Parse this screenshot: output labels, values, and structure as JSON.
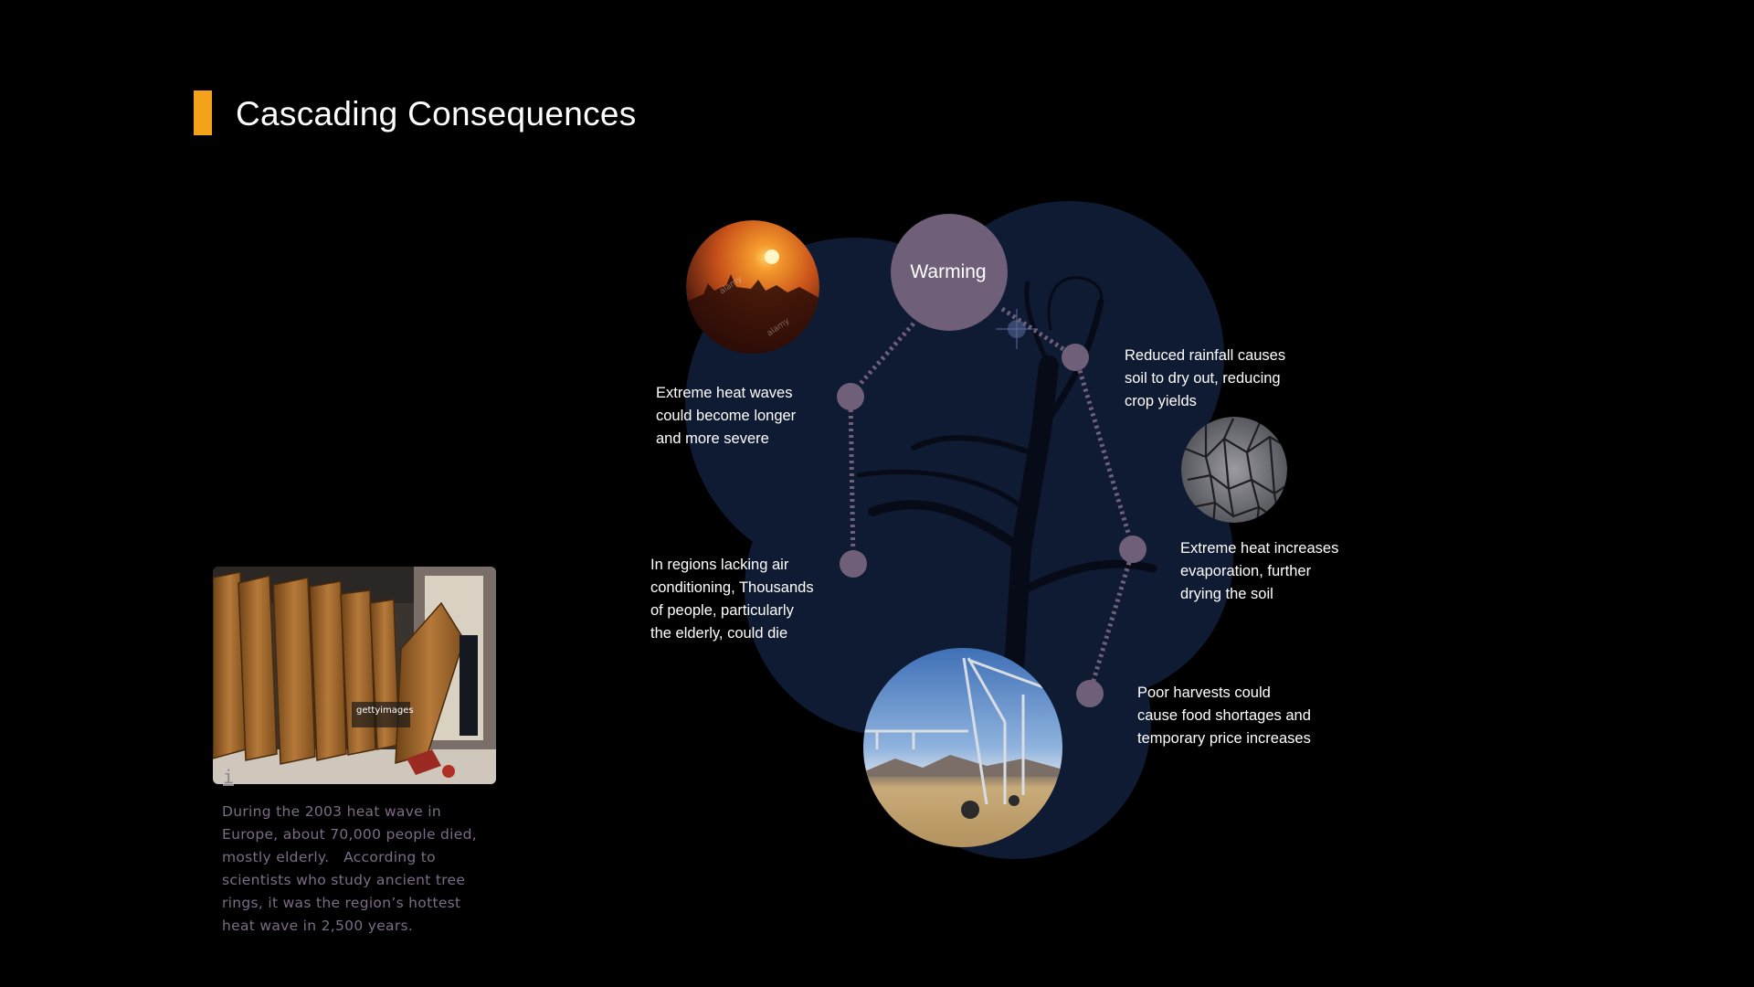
{
  "header": {
    "title": "Cascading Consequences",
    "accent_color": "#f5a21b"
  },
  "diagram": {
    "center": {
      "label": "Warming",
      "color": "#6f5f79"
    },
    "node_color": "#6f5f79",
    "blob_color": "#0f1a33",
    "nodes": [
      {
        "id": "heat-waves",
        "text": [
          "Extreme heat waves",
          "could become longer",
          "and more severe"
        ]
      },
      {
        "id": "people-die",
        "text": [
          "In regions lacking air",
          "conditioning, Thousands",
          "of people, particularly",
          "the elderly, could die"
        ]
      },
      {
        "id": "rainfall",
        "text": [
          "Reduced rainfall causes",
          "soil to dry out, reducing",
          "crop yields"
        ]
      },
      {
        "id": "evaporation",
        "text": [
          "Extreme heat increases",
          "evaporation, further",
          "drying the soil"
        ]
      },
      {
        "id": "harvests",
        "text": [
          "Poor harvests could",
          "cause food shortages and",
          "temporary price increases"
        ]
      }
    ],
    "images": [
      {
        "id": "sunset-photo",
        "icon": "sunset-city-image",
        "watermark": "alamy"
      },
      {
        "id": "cracked-soil-photo",
        "icon": "cracked-soil-image"
      },
      {
        "id": "irrigation-photo",
        "icon": "irrigation-field-image"
      }
    ]
  },
  "sidebar": {
    "photo": {
      "icon": "coffins-image",
      "watermark": "gettyimages"
    },
    "info_icon": "i",
    "caption": "During the 2003 heat wave in\nEurope, about 70,000 people died,\nmostly elderly.   According to\nscientists who study ancient tree\nrings, it was the region’s hottest\nheat wave in 2,500 years."
  }
}
